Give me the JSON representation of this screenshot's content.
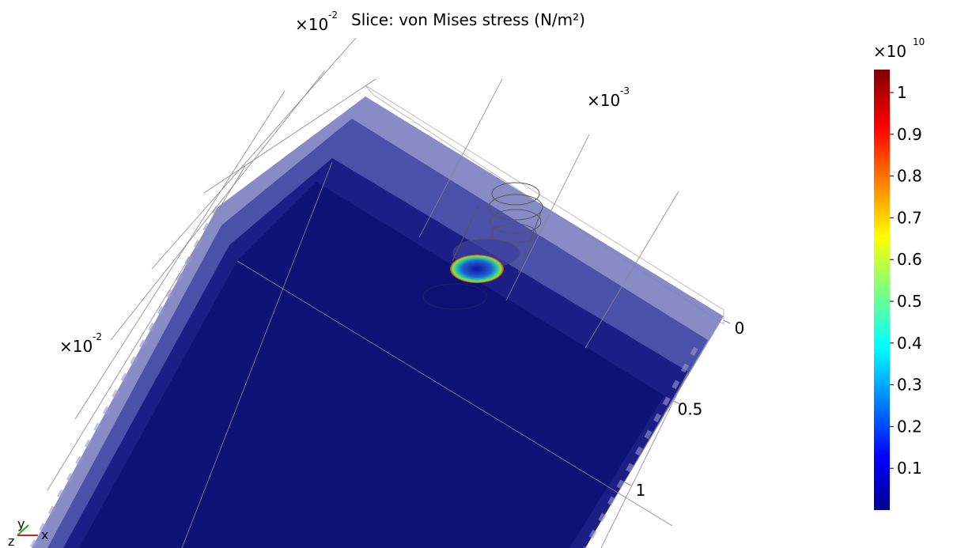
{
  "title": "Slice: von Mises stress (N/m²)",
  "colorbar": {
    "multiplier": "×10",
    "exponent": "10",
    "lim": [
      0,
      1.055
    ],
    "ticks": [
      1,
      0.9,
      0.8,
      0.7,
      0.6,
      0.5,
      0.4,
      0.3,
      0.2,
      0.1
    ]
  },
  "axis_multipliers": [
    {
      "base": "×10",
      "exponent": "-2"
    },
    {
      "base": "×10",
      "exponent": "-3"
    },
    {
      "base": "×10",
      "exponent": "-2"
    }
  ],
  "axis_ticks": [
    0,
    0.5,
    1
  ],
  "triad": [
    "y",
    "z",
    "x"
  ]
}
